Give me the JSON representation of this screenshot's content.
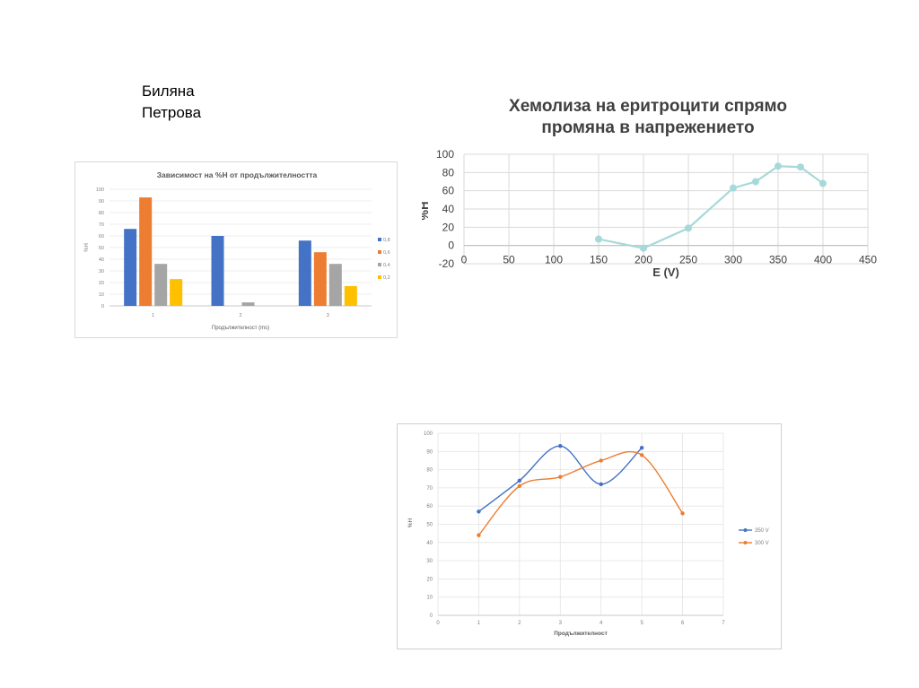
{
  "author": {
    "line1": "Биляна",
    "line2": "Петрова"
  },
  "chart_data": [
    {
      "type": "bar",
      "title": "Зависимост на %Н от продължителността",
      "xlabel": "Продължителност (ms)",
      "ylabel": "%H",
      "ylim": [
        0,
        100
      ],
      "yticks": [
        "0",
        "10",
        "20",
        "30",
        "40",
        "50",
        "60",
        "70",
        "80",
        "90",
        "100"
      ],
      "categories": [
        "1",
        "2",
        "3"
      ],
      "series": [
        {
          "name": "0,8",
          "color": "#4472c4",
          "values": [
            66,
            60,
            56
          ]
        },
        {
          "name": "0,6",
          "color": "#ed7d31",
          "values": [
            93,
            null,
            46
          ]
        },
        {
          "name": "0,4",
          "color": "#a5a5a5",
          "values": [
            36,
            3,
            36
          ]
        },
        {
          "name": "0,2",
          "color": "#ffc000",
          "values": [
            23,
            null,
            17
          ]
        }
      ],
      "legend": "right",
      "grid": true
    },
    {
      "type": "line",
      "title": "Хемолиза на еритроцити спрямо промяна в напрежението",
      "title_lines": [
        "Хемолиза на еритроцити спрямо",
        "промяна в напрежението"
      ],
      "xlabel": "E (V)",
      "ylabel": "%H",
      "xlim": [
        0,
        450
      ],
      "ylim": [
        -20,
        100
      ],
      "xticks": [
        "0",
        "50",
        "100",
        "150",
        "200",
        "250",
        "300",
        "350",
        "400",
        "450"
      ],
      "yticks": [
        "-20",
        "0",
        "20",
        "40",
        "60",
        "80",
        "100"
      ],
      "series": [
        {
          "color": "#a6d9d9",
          "x": [
            150,
            200,
            250,
            300,
            325,
            350,
            375,
            400
          ],
          "y": [
            7,
            -3,
            19,
            63,
            70,
            87,
            86,
            68
          ]
        }
      ],
      "grid": true
    },
    {
      "type": "line",
      "xlabel": "Продължителност",
      "ylabel": "%H",
      "xlim": [
        0,
        7
      ],
      "ylim": [
        0,
        100
      ],
      "xticks": [
        "0",
        "1",
        "2",
        "3",
        "4",
        "5",
        "6",
        "7"
      ],
      "yticks": [
        "0",
        "10",
        "20",
        "30",
        "40",
        "50",
        "60",
        "70",
        "80",
        "90",
        "100"
      ],
      "series": [
        {
          "name": "350 V",
          "color": "#4472c4",
          "x": [
            1,
            2,
            3,
            4,
            5
          ],
          "y": [
            57,
            74,
            93,
            72,
            92
          ]
        },
        {
          "name": "300 V",
          "color": "#ed7d31",
          "x": [
            1,
            2,
            3,
            4,
            5,
            6
          ],
          "y": [
            44,
            71,
            76,
            85,
            88,
            56
          ]
        }
      ],
      "legend": "right",
      "grid": true
    }
  ]
}
